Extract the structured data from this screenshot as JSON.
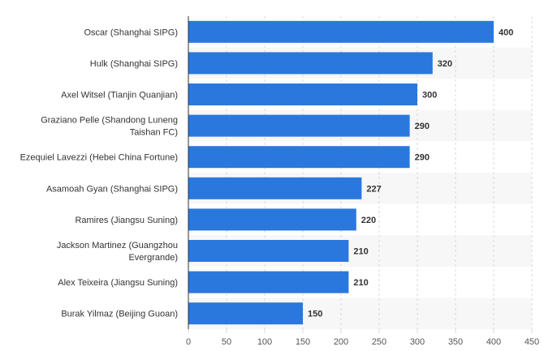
{
  "chart_data": {
    "type": "bar",
    "orientation": "horizontal",
    "categories": [
      "Oscar (Shanghai SIPG)",
      "Hulk (Shanghai SIPG)",
      "Axel Witsel (Tianjin Quanjian)",
      "Graziano Pelle (Shandong Luneng Taishan FC)",
      "Ezequiel Lavezzi (Hebei China Fortune)",
      "Asamoah Gyan (Shanghai SIPG)",
      "Ramires (Jiangsu Suning)",
      "Jackson Martinez (Guangzhou Evergrande)",
      "Alex Teixeira (Jiangsu Suning)",
      "Burak Yilmaz (Beijing Guoan)"
    ],
    "category_lines": [
      [
        "Oscar (Shanghai SIPG)"
      ],
      [
        "Hulk (Shanghai SIPG)"
      ],
      [
        "Axel Witsel (Tianjin Quanjian)"
      ],
      [
        "Graziano Pelle (Shandong Luneng",
        "Taishan FC)"
      ],
      [
        "Ezequiel Lavezzi (Hebei China Fortune)"
      ],
      [
        "Asamoah Gyan (Shanghai SIPG)"
      ],
      [
        "Ramires (Jiangsu Suning)"
      ],
      [
        "Jackson Martinez (Guangzhou",
        "Evergrande)"
      ],
      [
        "Alex Teixeira (Jiangsu Suning)"
      ],
      [
        "Burak Yilmaz (Beijing Guoan)"
      ]
    ],
    "values": [
      400,
      320,
      300,
      290,
      290,
      227,
      220,
      210,
      210,
      150
    ],
    "value_labels": [
      "400",
      "320",
      "300",
      "290",
      "290",
      "227",
      "220",
      "210",
      "210",
      "150"
    ],
    "xlim": [
      0,
      450
    ],
    "x_ticks": [
      0,
      50,
      100,
      150,
      200,
      250,
      300,
      350,
      400,
      450
    ],
    "x_tick_labels": [
      "0",
      "50",
      "100",
      "150",
      "200",
      "250",
      "300",
      "350",
      "400",
      "450"
    ],
    "grid": true,
    "title": "",
    "xlabel": "",
    "ylabel": ""
  },
  "colors": {
    "bar": "#2a78de",
    "band": "#f7f7f7",
    "grid": "#d8d8d8",
    "axis": "#333333"
  }
}
